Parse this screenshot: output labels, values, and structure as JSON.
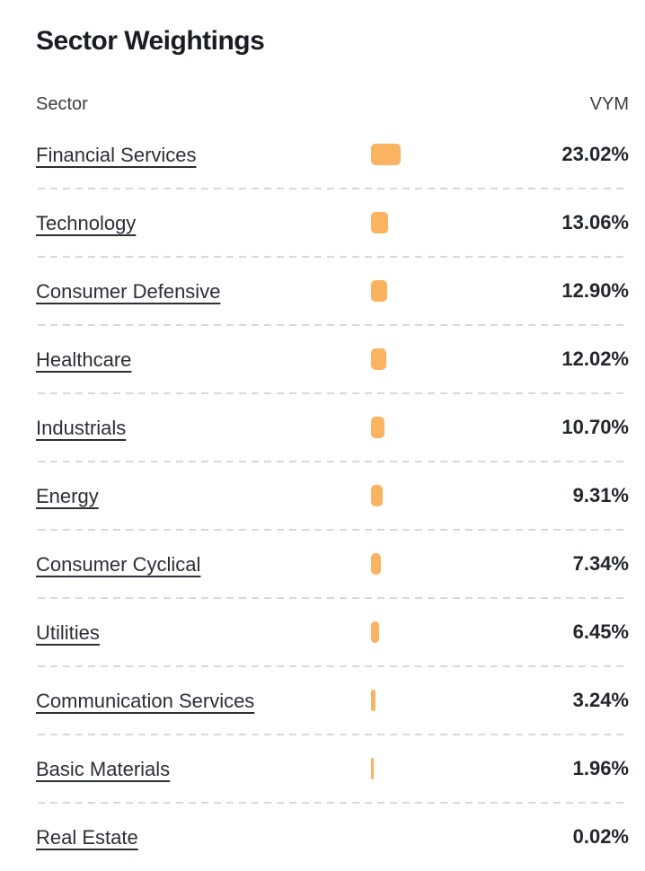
{
  "title": "Sector Weightings",
  "table": {
    "columns": {
      "sector": "Sector",
      "fund": "VYM"
    },
    "rows": [
      {
        "sector": "Financial Services",
        "weight": 23.02,
        "value": "23.02%"
      },
      {
        "sector": "Technology",
        "weight": 13.06,
        "value": "13.06%"
      },
      {
        "sector": "Consumer Defensive",
        "weight": 12.9,
        "value": "12.90%"
      },
      {
        "sector": "Healthcare",
        "weight": 12.02,
        "value": "12.02%"
      },
      {
        "sector": "Industrials",
        "weight": 10.7,
        "value": "10.70%"
      },
      {
        "sector": "Energy",
        "weight": 9.31,
        "value": "9.31%"
      },
      {
        "sector": "Consumer Cyclical",
        "weight": 7.34,
        "value": "7.34%"
      },
      {
        "sector": "Utilities",
        "weight": 6.45,
        "value": "6.45%"
      },
      {
        "sector": "Communication Services",
        "weight": 3.24,
        "value": "3.24%"
      },
      {
        "sector": "Basic Materials",
        "weight": 1.96,
        "value": "1.96%"
      },
      {
        "sector": "Real Estate",
        "weight": 0.02,
        "value": "0.02%"
      }
    ]
  },
  "colors": {
    "bar": "#fab461",
    "divider": "#d6d9de",
    "title_text": "#1a1d23",
    "link_text": "#2b2f36",
    "value_text": "#22262c"
  },
  "chart_data": {
    "type": "bar",
    "orientation": "horizontal",
    "title": "Sector Weightings",
    "categories": [
      "Financial Services",
      "Technology",
      "Consumer Defensive",
      "Healthcare",
      "Industrials",
      "Energy",
      "Consumer Cyclical",
      "Utilities",
      "Communication Services",
      "Basic Materials",
      "Real Estate"
    ],
    "series": [
      {
        "name": "VYM",
        "values": [
          23.02,
          13.06,
          12.9,
          12.02,
          10.7,
          9.31,
          7.34,
          6.45,
          3.24,
          1.96,
          0.02
        ]
      }
    ],
    "value_unit": "percent",
    "xlabel": "Sector",
    "ylabel": "VYM",
    "grid": false,
    "legend_position": "none",
    "bar_color": "#fab461"
  }
}
